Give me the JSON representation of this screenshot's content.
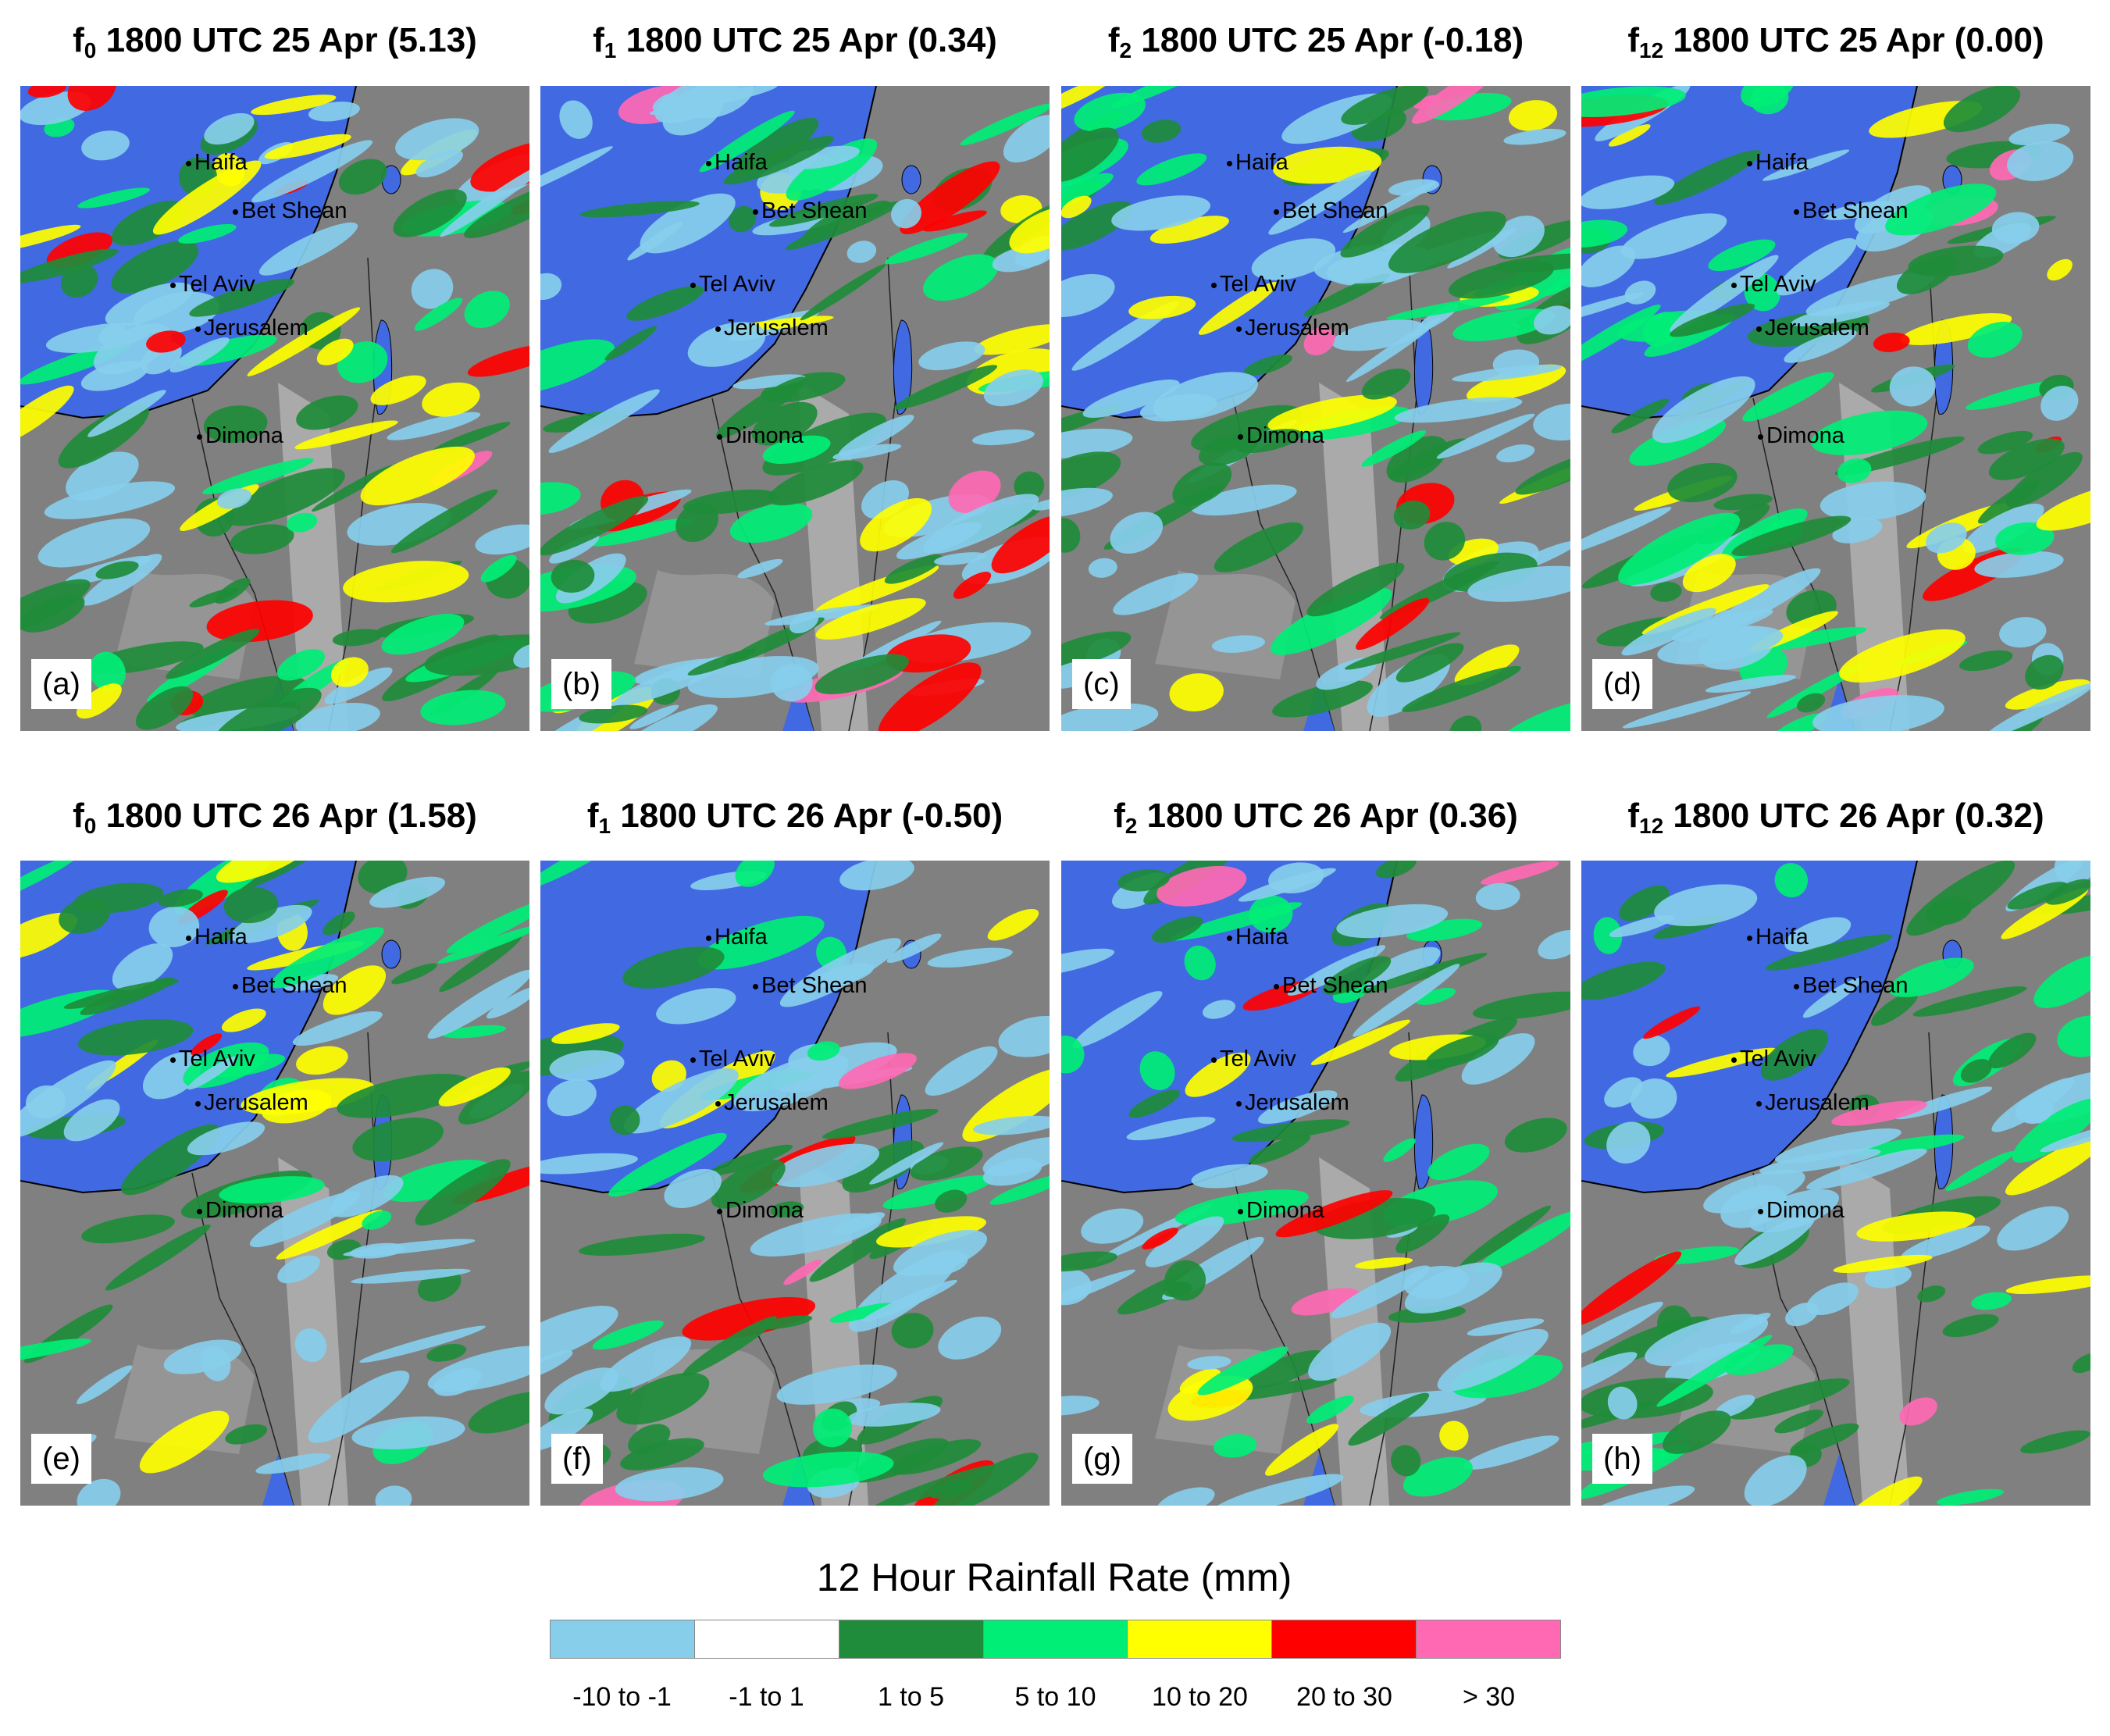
{
  "panels": [
    {
      "id": "a",
      "letter": "(a)",
      "field": "f",
      "sub": "0",
      "rest": " 1800 UTC 25 Apr (5.13)"
    },
    {
      "id": "b",
      "letter": "(b)",
      "field": "f",
      "sub": "1",
      "rest": " 1800 UTC 25 Apr (0.34)"
    },
    {
      "id": "c",
      "letter": "(c)",
      "field": "f",
      "sub": "2",
      "rest": " 1800 UTC 25 Apr (-0.18)"
    },
    {
      "id": "d",
      "letter": "(d)",
      "field": "f",
      "sub": "12",
      "rest": " 1800 UTC 25 Apr (0.00)"
    },
    {
      "id": "e",
      "letter": "(e)",
      "field": "f",
      "sub": "0",
      "rest": " 1800 UTC 26 Apr (1.58)"
    },
    {
      "id": "f",
      "letter": "(f)",
      "field": "f",
      "sub": "1",
      "rest": " 1800 UTC 26 Apr (-0.50)"
    },
    {
      "id": "g",
      "letter": "(g)",
      "field": "f",
      "sub": "2",
      "rest": " 1800 UTC 26 Apr (0.36)"
    },
    {
      "id": "h",
      "letter": "(h)",
      "field": "f",
      "sub": "12",
      "rest": " 1800 UTC 26 Apr (0.32)"
    }
  ],
  "cities": [
    "Haifa",
    "Bet Shean",
    "Tel Aviv",
    "Jerusalem",
    "Dimona"
  ],
  "legend": {
    "title": "12 Hour Rainfall Rate (mm)",
    "bins": [
      {
        "label": "-10 to -1",
        "color": "#87ceeb"
      },
      {
        "label": "-1 to 1",
        "color": "#ffffff"
      },
      {
        "label": "1 to 5",
        "color": "#1e8c3a"
      },
      {
        "label": "5 to 10",
        "color": "#00ee76"
      },
      {
        "label": "10 to 20",
        "color": "#ffff00"
      },
      {
        "label": "20 to 30",
        "color": "#ff0000"
      },
      {
        "label": "> 30",
        "color": "#ff69b4"
      }
    ]
  },
  "colors": {
    "sea": "#4169e1",
    "land_dark": "#808080",
    "land_light": "#b4b4b4"
  }
}
